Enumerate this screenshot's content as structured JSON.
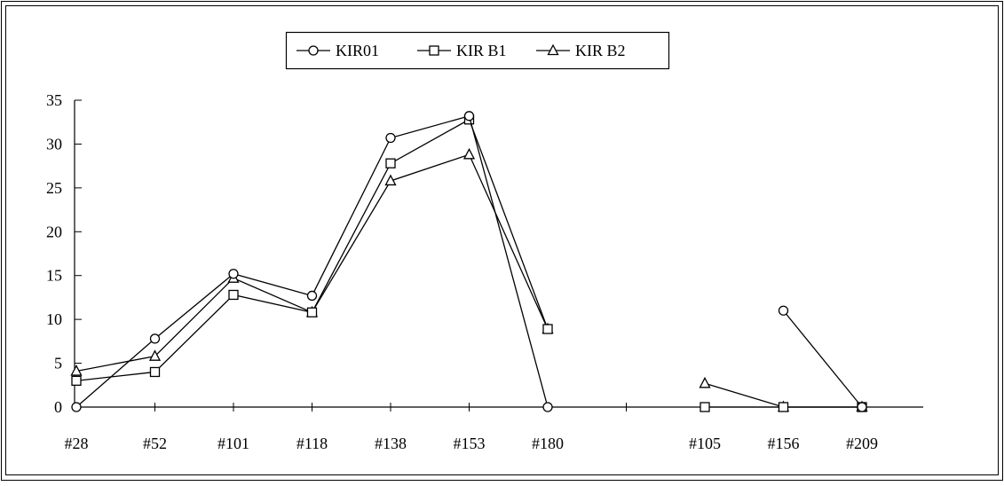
{
  "chart_data": {
    "type": "line",
    "categories": [
      "#28",
      "#52",
      "#101",
      "#118",
      "#138",
      "#153",
      "#180",
      "",
      "#105",
      "#156",
      "#209"
    ],
    "series": [
      {
        "name": "KIR01",
        "marker": "circle",
        "values": [
          0,
          7.8,
          15.2,
          12.7,
          30.7,
          33.2,
          0,
          null,
          null,
          11,
          0
        ]
      },
      {
        "name": "KIR B1",
        "marker": "square",
        "values": [
          3,
          4,
          12.8,
          10.8,
          27.8,
          32.8,
          8.9,
          null,
          0,
          0,
          0
        ]
      },
      {
        "name": "KIR B2",
        "marker": "triangle",
        "values": [
          4.1,
          5.8,
          14.7,
          10.8,
          25.8,
          28.8,
          8.9,
          null,
          2.7,
          0,
          0
        ]
      }
    ],
    "xlabel": "",
    "ylabel": "",
    "ylim": [
      0,
      35
    ],
    "yticks": [
      0,
      5,
      10,
      15,
      20,
      25,
      30,
      35
    ],
    "grid": false,
    "legend": "top-center",
    "colors": {
      "line": "#000000",
      "marker_fill": "#ffffff"
    }
  }
}
